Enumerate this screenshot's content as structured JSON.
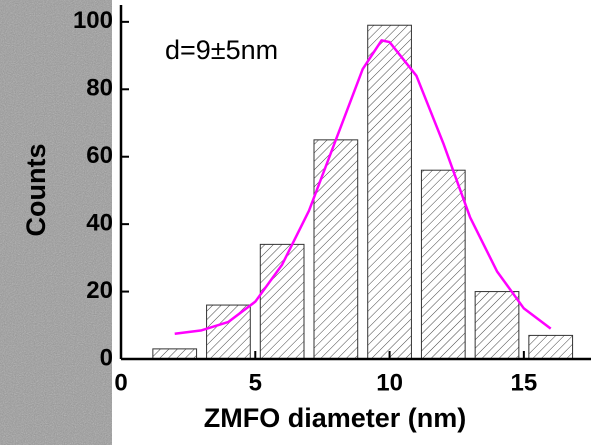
{
  "chart_data": {
    "type": "histogram",
    "xlabel": "ZMFO diameter (nm)",
    "ylabel": "Counts",
    "annotation": "d=9±5nm",
    "bins": [
      1,
      3,
      5,
      7,
      9,
      11,
      13,
      15,
      17
    ],
    "values": [
      3,
      16,
      34,
      65,
      99,
      56,
      20,
      7
    ],
    "color": "#333333",
    "hatch": true,
    "fit": {
      "color": "#ff00ff",
      "x": [
        2,
        3,
        4,
        5,
        6,
        7,
        8,
        9,
        9.7,
        10,
        11,
        12,
        13,
        14,
        15,
        16
      ],
      "values": [
        7.5,
        8.5,
        11,
        17,
        28,
        44,
        65,
        86,
        94.5,
        94,
        84,
        64,
        42,
        26,
        15,
        9
      ]
    },
    "xlim": [
      0,
      17.5
    ],
    "ylim": [
      0,
      105
    ],
    "xticks": [
      0,
      5,
      10,
      15
    ],
    "yticks": [
      0,
      20,
      40,
      60,
      80,
      100
    ]
  }
}
